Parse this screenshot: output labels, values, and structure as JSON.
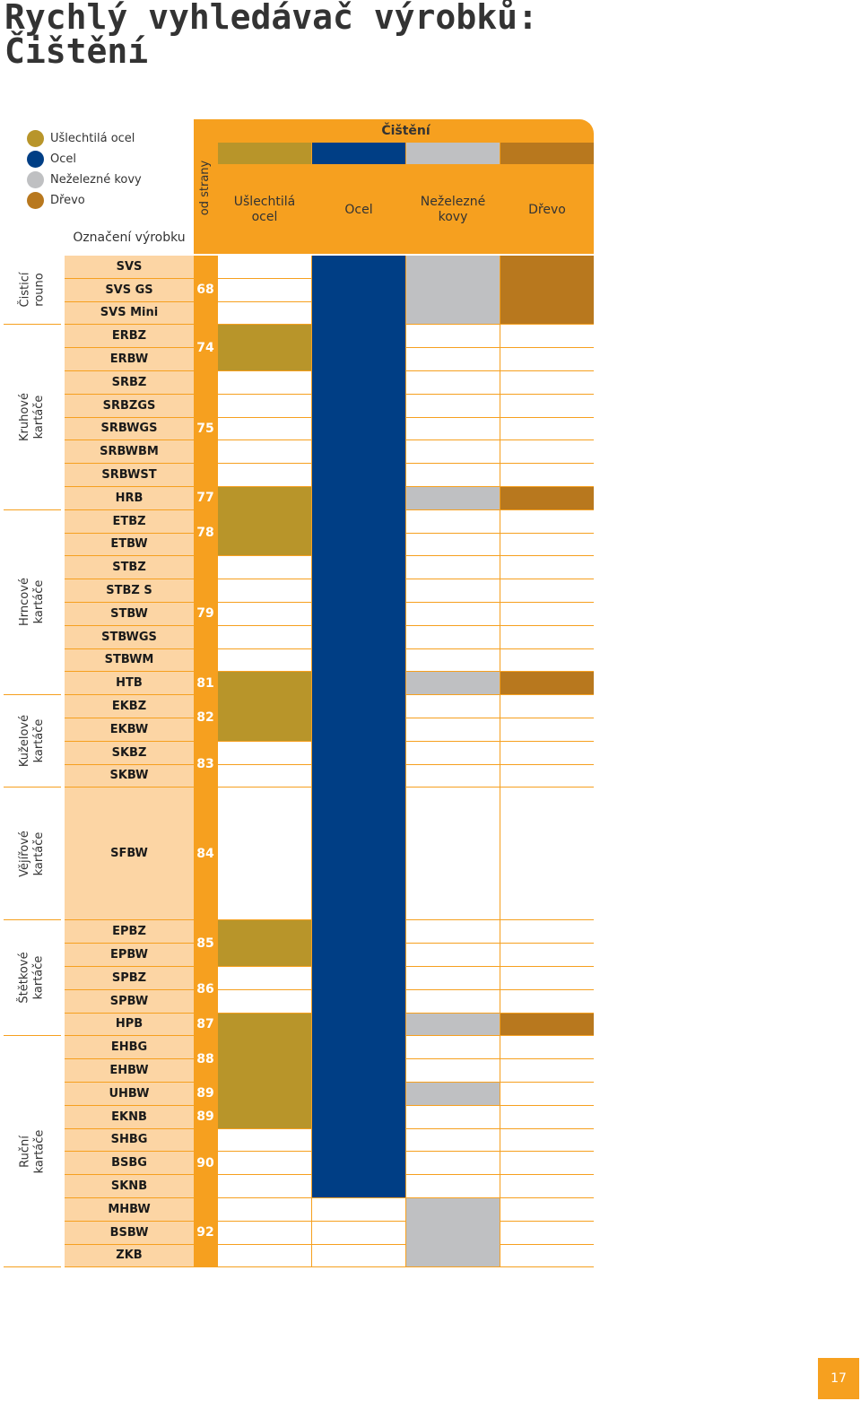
{
  "title_line1": "Rychlý vyhledávač výrobků:",
  "title_line2": "Čištění",
  "legend": [
    {
      "label": "Ušlechtilá ocel",
      "color": "#B8952A"
    },
    {
      "label": "Ocel",
      "color": "#003E85"
    },
    {
      "label": "Neželezné kovy",
      "color": "#BFC0C2"
    },
    {
      "label": "Dřevo",
      "color": "#B8781E"
    }
  ],
  "header": {
    "product_label": "Označení výrobku",
    "page_label": "od strany",
    "section": "Čištění",
    "columns": [
      {
        "name": "Ušlechtilá ocel",
        "lines": [
          "Ušlechtilá",
          "ocel"
        ],
        "color": "#B8952A"
      },
      {
        "name": "Ocel",
        "lines": [
          "Ocel"
        ],
        "color": "#003E85"
      },
      {
        "name": "Neželezné kovy",
        "lines": [
          "Neželezné",
          "kovy"
        ],
        "color": "#BFC0C2"
      },
      {
        "name": "Dřevo",
        "lines": [
          "Dřevo"
        ],
        "color": "#B8781E"
      }
    ]
  },
  "groups": [
    {
      "label": "Čisticí rouno",
      "lines": [
        "Čisticí",
        "rouno"
      ],
      "rows": 3
    },
    {
      "label": "Kruhové kartáče",
      "lines": [
        "Kruhové",
        "kartáče"
      ],
      "rows": 8
    },
    {
      "label": "Hrncové kartáče",
      "lines": [
        "Hrncové",
        "kartáče"
      ],
      "rows": 8
    },
    {
      "label": "Kuželové kartáče",
      "lines": [
        "Kuželové",
        "kartáče"
      ],
      "rows": 4
    },
    {
      "label": "Vějířové kartáče",
      "lines": [
        "Vějířové",
        "kartáče"
      ],
      "rows": 1,
      "tall": true
    },
    {
      "label": "Štětkové kartáče",
      "lines": [
        "Štětkové",
        "kartáče"
      ],
      "rows": 5
    },
    {
      "label": "Ruční kartáče",
      "lines": [
        "Ruční",
        "kartáče"
      ],
      "rows": 10
    }
  ],
  "products": [
    {
      "name": "SVS",
      "suitable": [
        false,
        true,
        true,
        true
      ]
    },
    {
      "name": "SVS GS",
      "suitable": [
        false,
        true,
        true,
        true
      ]
    },
    {
      "name": "SVS Mini",
      "suitable": [
        false,
        true,
        true,
        true
      ]
    },
    {
      "name": "ERBZ",
      "suitable": [
        true,
        true,
        false,
        false
      ]
    },
    {
      "name": "ERBW",
      "suitable": [
        true,
        true,
        false,
        false
      ]
    },
    {
      "name": "SRBZ",
      "suitable": [
        false,
        true,
        false,
        false
      ]
    },
    {
      "name": "SRBZGS",
      "suitable": [
        false,
        true,
        false,
        false
      ]
    },
    {
      "name": "SRBWGS",
      "suitable": [
        false,
        true,
        false,
        false
      ]
    },
    {
      "name": "SRBWBM",
      "suitable": [
        false,
        true,
        false,
        false
      ]
    },
    {
      "name": "SRBWST",
      "suitable": [
        false,
        true,
        false,
        false
      ]
    },
    {
      "name": "HRB",
      "suitable": [
        true,
        true,
        true,
        true
      ]
    },
    {
      "name": "ETBZ",
      "suitable": [
        true,
        true,
        false,
        false
      ]
    },
    {
      "name": "ETBW",
      "suitable": [
        true,
        true,
        false,
        false
      ]
    },
    {
      "name": "STBZ",
      "suitable": [
        false,
        true,
        false,
        false
      ]
    },
    {
      "name": "STBZ S",
      "suitable": [
        false,
        true,
        false,
        false
      ]
    },
    {
      "name": "STBW",
      "suitable": [
        false,
        true,
        false,
        false
      ]
    },
    {
      "name": "STBWGS",
      "suitable": [
        false,
        true,
        false,
        false
      ]
    },
    {
      "name": "STBWM",
      "suitable": [
        false,
        true,
        false,
        false
      ]
    },
    {
      "name": "HTB",
      "suitable": [
        true,
        true,
        true,
        true
      ]
    },
    {
      "name": "EKBZ",
      "suitable": [
        true,
        true,
        false,
        false
      ]
    },
    {
      "name": "EKBW",
      "suitable": [
        true,
        true,
        false,
        false
      ]
    },
    {
      "name": "SKBZ",
      "suitable": [
        false,
        true,
        false,
        false
      ]
    },
    {
      "name": "SKBW",
      "suitable": [
        false,
        true,
        false,
        false
      ]
    },
    {
      "name": "SFBW",
      "suitable": [
        false,
        true,
        false,
        false
      ]
    },
    {
      "name": "EPBZ",
      "suitable": [
        true,
        true,
        false,
        false
      ]
    },
    {
      "name": "EPBW",
      "suitable": [
        true,
        true,
        false,
        false
      ]
    },
    {
      "name": "SPBZ",
      "suitable": [
        false,
        true,
        false,
        false
      ]
    },
    {
      "name": "SPBW",
      "suitable": [
        false,
        true,
        false,
        false
      ]
    },
    {
      "name": "HPB",
      "suitable": [
        true,
        true,
        true,
        true
      ]
    },
    {
      "name": "EHBG",
      "suitable": [
        true,
        true,
        false,
        false
      ]
    },
    {
      "name": "EHBW",
      "suitable": [
        true,
        true,
        false,
        false
      ]
    },
    {
      "name": "UHBW",
      "suitable": [
        true,
        true,
        true,
        false
      ]
    },
    {
      "name": "EKNB",
      "suitable": [
        true,
        true,
        false,
        false
      ]
    },
    {
      "name": "SHBG",
      "suitable": [
        false,
        true,
        false,
        false
      ]
    },
    {
      "name": "BSBG",
      "suitable": [
        false,
        true,
        false,
        false
      ]
    },
    {
      "name": "SKNB",
      "suitable": [
        false,
        true,
        false,
        false
      ]
    },
    {
      "name": "MHBW",
      "suitable": [
        false,
        false,
        true,
        false
      ]
    },
    {
      "name": "BSBW",
      "suitable": [
        false,
        false,
        true,
        false
      ]
    },
    {
      "name": "ZKB",
      "suitable": [
        false,
        false,
        true,
        false
      ]
    }
  ],
  "pages": [
    {
      "from": 0,
      "to": 2,
      "page": "68"
    },
    {
      "from": 3,
      "to": 4,
      "page": "74"
    },
    {
      "from": 5,
      "to": 9,
      "page": "75"
    },
    {
      "from": 10,
      "to": 10,
      "page": "77"
    },
    {
      "from": 11,
      "to": 12,
      "page": "78"
    },
    {
      "from": 13,
      "to": 17,
      "page": "79"
    },
    {
      "from": 18,
      "to": 18,
      "page": "81"
    },
    {
      "from": 19,
      "to": 20,
      "page": "82"
    },
    {
      "from": 21,
      "to": 22,
      "page": "83"
    },
    {
      "from": 23,
      "to": 23,
      "page": "84"
    },
    {
      "from": 24,
      "to": 25,
      "page": "85"
    },
    {
      "from": 26,
      "to": 27,
      "page": "86"
    },
    {
      "from": 28,
      "to": 28,
      "page": "87"
    },
    {
      "from": 29,
      "to": 30,
      "page": "88"
    },
    {
      "from": 31,
      "to": 31,
      "page": "89"
    },
    {
      "from": 32,
      "to": 32,
      "page": "89"
    },
    {
      "from": 33,
      "to": 35,
      "page": "90"
    },
    {
      "from": 36,
      "to": 38,
      "page": "92"
    }
  ],
  "page_number": "17"
}
